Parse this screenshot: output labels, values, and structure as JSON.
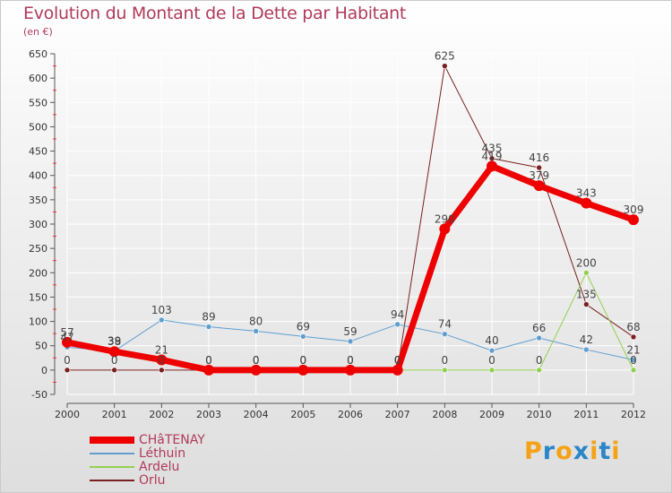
{
  "header": {
    "title": "Evolution du Montant de la Dette par Habitant",
    "unit": "(en €)"
  },
  "logo": {
    "text": "Proxiti",
    "colors": [
      "#f5a219",
      "#2a86c8",
      "#f5a219",
      "#2a86c8",
      "#f5a219",
      "#2a86c8",
      "#f5a219"
    ]
  },
  "chart_data": {
    "type": "line",
    "title": "Evolution du Montant de la Dette par Habitant",
    "ylabel": "(en €)",
    "xlabel": "",
    "x": [
      "2000",
      "2001",
      "2002",
      "2003",
      "2004",
      "2005",
      "2006",
      "2007",
      "2008",
      "2009",
      "2010",
      "2011",
      "2012"
    ],
    "ylim": [
      -50,
      650
    ],
    "yticks": [
      -50,
      0,
      50,
      100,
      150,
      200,
      250,
      300,
      350,
      400,
      450,
      500,
      550,
      600,
      650
    ],
    "ytick_labels": [
      "-50",
      "0",
      "50",
      "100",
      "150",
      "200",
      "250",
      "300",
      "350",
      "400",
      "450",
      "500",
      "550",
      "600",
      "650"
    ],
    "grid": true,
    "legend_position": "bottom-left",
    "series": [
      {
        "name": "CHâTENAY",
        "values": [
          57,
          38,
          21,
          0,
          0,
          0,
          0,
          0,
          290,
          419,
          379,
          343,
          309
        ],
        "labels": [
          "57",
          "38",
          "21",
          "0",
          "0",
          "0",
          "0",
          "0",
          "290",
          "419",
          "379",
          "343",
          "309"
        ],
        "color": "#ee0000",
        "width": 7
      },
      {
        "name": "Léthuin",
        "values": [
          47,
          39,
          103,
          89,
          80,
          69,
          59,
          94,
          74,
          40,
          66,
          42,
          21
        ],
        "labels": [
          "47",
          "39",
          "103",
          "89",
          "80",
          "69",
          "59",
          "94",
          "74",
          "40",
          "66",
          "42",
          "21"
        ],
        "color": "#5f9ed1",
        "width": 1
      },
      {
        "name": "Ardelu",
        "values": [
          null,
          null,
          null,
          null,
          null,
          null,
          null,
          0,
          0,
          0,
          0,
          200,
          0
        ],
        "labels": [
          "",
          "",
          "",
          "",
          "",
          "",
          "",
          "0",
          "0",
          "0",
          "0",
          "200",
          "0"
        ],
        "color": "#92d050",
        "width": 1
      },
      {
        "name": "Orlu",
        "values": [
          0,
          0,
          0,
          0,
          0,
          0,
          0,
          0,
          625,
          435,
          416,
          135,
          68
        ],
        "labels": [
          "0",
          "0",
          "0",
          "0",
          "0",
          "0",
          "0",
          "0",
          "625",
          "435",
          "416",
          "135",
          "68"
        ],
        "color": "#7a2020",
        "width": 1
      }
    ]
  }
}
